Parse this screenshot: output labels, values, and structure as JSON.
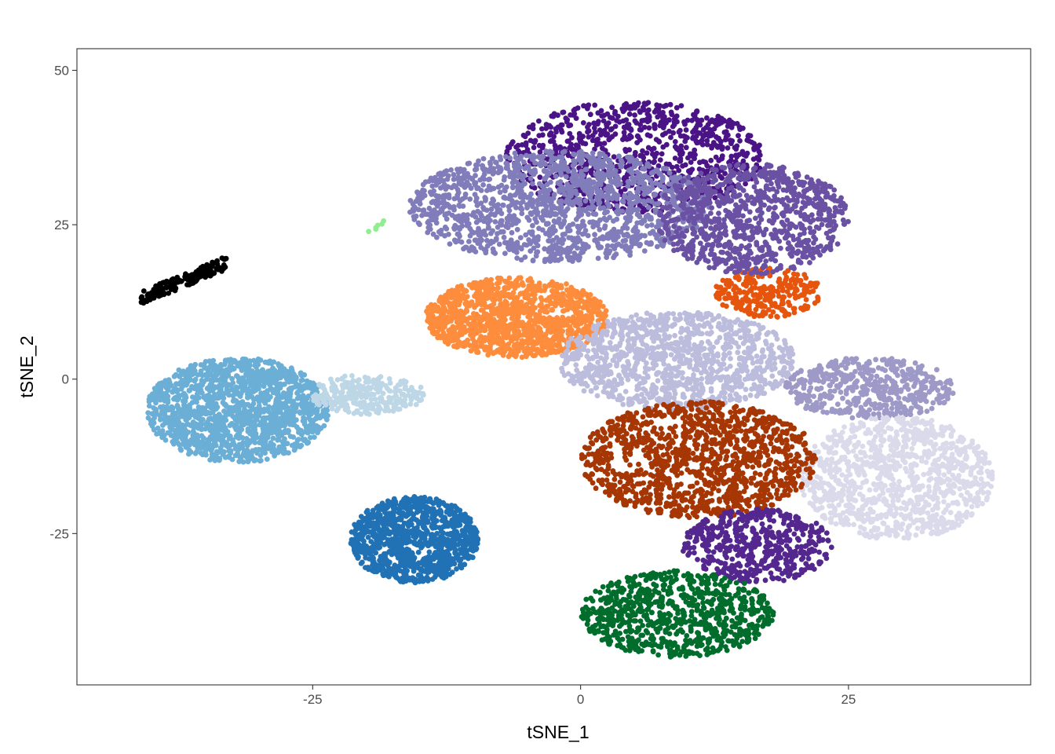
{
  "chart_data": {
    "type": "scatter",
    "title": "",
    "xlabel": "tSNE_1",
    "ylabel": "tSNE_2",
    "xlim": [
      -47,
      42
    ],
    "ylim": [
      -49.5,
      53.5
    ],
    "x_ticks": [
      -25,
      0,
      25
    ],
    "x_tick_labels": [
      "-25",
      "0",
      "25"
    ],
    "y_ticks": [
      -25,
      0,
      25,
      50
    ],
    "y_tick_labels": [
      "-25",
      "0",
      "25",
      "50"
    ],
    "grid": false,
    "legend": "none",
    "series": [
      {
        "color": "#6BAED6",
        "points": 1500,
        "center": [
          -32,
          -5
        ],
        "spread": [
          8.5,
          8.5
        ],
        "shape": "disc"
      },
      {
        "color": "#BDD7E7",
        "points": 280,
        "center": [
          -20,
          -2.5
        ],
        "spread": [
          5.5,
          3.2
        ],
        "shape": "ellipse"
      },
      {
        "color": "#2171B5",
        "points": 1000,
        "center": [
          -15.5,
          -26
        ],
        "spread": [
          6,
          7
        ],
        "shape": "ellipse"
      },
      {
        "color": "#000000",
        "points": 170,
        "center": [
          -37,
          16
        ],
        "spread": [
          4,
          3.2
        ],
        "shape": "band"
      },
      {
        "color": "#FD8D3C",
        "points": 1200,
        "center": [
          -6,
          10
        ],
        "spread": [
          8.5,
          6.5
        ],
        "shape": "ellipse"
      },
      {
        "color": "#E6550D",
        "points": 260,
        "center": [
          17.5,
          14
        ],
        "spread": [
          5,
          4
        ],
        "shape": "ellipse"
      },
      {
        "color": "#4A1486",
        "points": 900,
        "center": [
          5,
          36
        ],
        "spread": [
          12,
          9
        ],
        "shape": "ellipse"
      },
      {
        "color": "#807DBA",
        "points": 1400,
        "center": [
          -2,
          28
        ],
        "spread": [
          14,
          9
        ],
        "shape": "ellipse"
      },
      {
        "color": "#6A51A3",
        "points": 900,
        "center": [
          16,
          26
        ],
        "spread": [
          9,
          9
        ],
        "shape": "ellipse"
      },
      {
        "color": "#BCBDDC",
        "points": 1100,
        "center": [
          9,
          3
        ],
        "spread": [
          11,
          8
        ],
        "shape": "ellipse"
      },
      {
        "color": "#9E9AC8",
        "points": 500,
        "center": [
          27,
          -1.5
        ],
        "spread": [
          8,
          5
        ],
        "shape": "ellipse"
      },
      {
        "color": "#DADAEB",
        "points": 1000,
        "center": [
          29.5,
          -16
        ],
        "spread": [
          9,
          10
        ],
        "shape": "ellipse"
      },
      {
        "color": "#A63603",
        "points": 1200,
        "center": [
          11,
          -13
        ],
        "spread": [
          11,
          9.5
        ],
        "shape": "ellipse"
      },
      {
        "color": "#54278F",
        "points": 500,
        "center": [
          16.5,
          -27
        ],
        "spread": [
          7,
          6
        ],
        "shape": "ellipse"
      },
      {
        "color": "#006D2C",
        "points": 800,
        "center": [
          9,
          -38
        ],
        "spread": [
          9,
          7
        ],
        "shape": "ellipse"
      },
      {
        "color": "#90EE90",
        "points": 6,
        "center": [
          -19,
          25
        ],
        "spread": [
          1.2,
          1.5
        ],
        "shape": "ellipse"
      }
    ]
  }
}
